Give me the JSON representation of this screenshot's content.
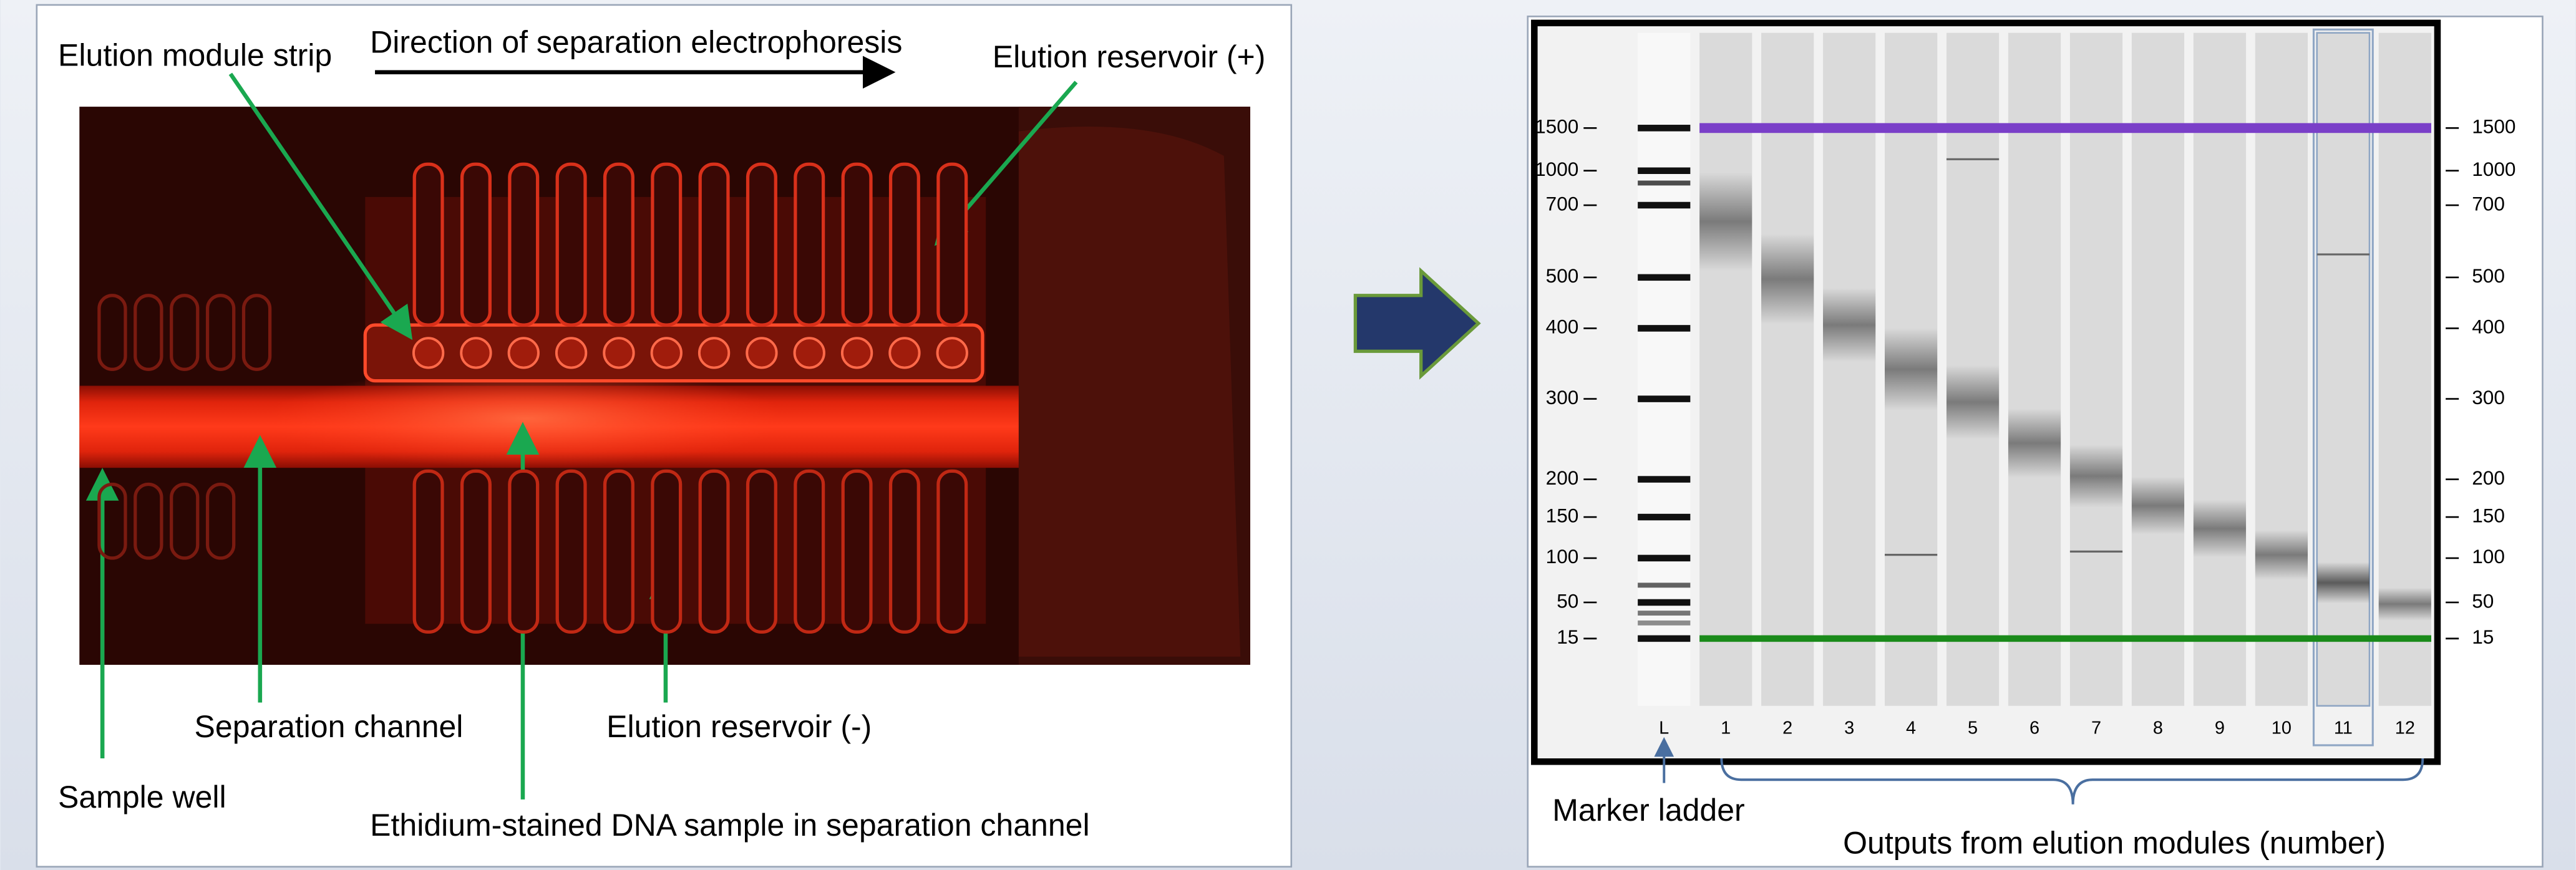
{
  "left_panel": {
    "direction_label": "Direction of separation electrophoresis",
    "labels": {
      "module_strip": "Elution module strip",
      "reservoir_pos": "Elution reservoir (+)",
      "separation_channel": "Separation channel",
      "reservoir_neg": "Elution reservoir (-)",
      "sample_well": "Sample well",
      "dna_sample": "Ethidium-stained DNA sample in separation channel"
    }
  },
  "gel": {
    "sizes": [
      1500,
      1000,
      700,
      500,
      400,
      300,
      200,
      150,
      100,
      50,
      15
    ],
    "lanes": [
      "L",
      "1",
      "2",
      "3",
      "4",
      "5",
      "6",
      "7",
      "8",
      "9",
      "10",
      "11",
      "12"
    ],
    "ladder_caption": "Marker ladder",
    "outputs_caption": "Outputs from elution modules (number)"
  }
}
